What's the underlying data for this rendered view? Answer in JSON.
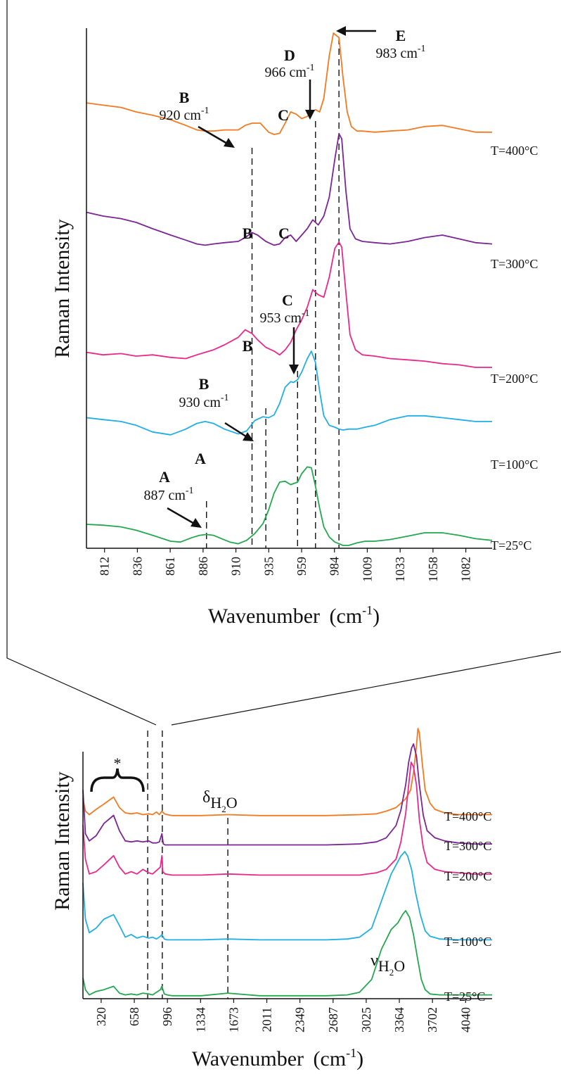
{
  "chart_data": [
    {
      "id": "detail",
      "type": "line",
      "title": "",
      "xlabel": "Wavenumber",
      "xlabel_unit": "(cm",
      "xlabel_unit_sup": "-1",
      "xlabel_unit_close": ")",
      "ylabel": "Raman Intensity",
      "xlim": [
        800,
        1094
      ],
      "x_ticks": [
        "812",
        "836",
        "861",
        "886",
        "910",
        "935",
        "959",
        "984",
        "1009",
        "1033",
        "1058",
        "1082"
      ],
      "grid": false,
      "series": [
        {
          "name": "T=400°C",
          "color": "#f47a20",
          "x": [
            800,
            812,
            825,
            836,
            848,
            861,
            872,
            880,
            886,
            892,
            900,
            910,
            915,
            920,
            926,
            932,
            936,
            940,
            944,
            948,
            952,
            956,
            960,
            963,
            966,
            969,
            972,
            976,
            979,
            983,
            986,
            989,
            992,
            996,
            1000,
            1009,
            1020,
            1033,
            1045,
            1058,
            1070,
            1082,
            1094
          ],
          "y": [
            0.38,
            0.36,
            0.34,
            0.3,
            0.27,
            0.23,
            0.18,
            0.14,
            0.13,
            0.13,
            0.14,
            0.14,
            0.18,
            0.2,
            0.2,
            0.12,
            0.1,
            0.11,
            0.2,
            0.3,
            0.28,
            0.24,
            0.26,
            0.29,
            0.32,
            0.3,
            0.42,
            0.8,
            1.0,
            0.96,
            0.6,
            0.3,
            0.17,
            0.13,
            0.13,
            0.12,
            0.13,
            0.14,
            0.17,
            0.18,
            0.15,
            0.12,
            0.12
          ]
        },
        {
          "name": "T=300°C",
          "color": "#7b2596",
          "x": [
            800,
            812,
            825,
            836,
            848,
            861,
            872,
            880,
            886,
            892,
            900,
            910,
            915,
            920,
            924,
            930,
            936,
            940,
            944,
            948,
            952,
            956,
            960,
            964,
            968,
            972,
            976,
            980,
            983,
            985,
            988,
            991,
            995,
            1000,
            1009,
            1020,
            1033,
            1045,
            1058,
            1070,
            1082,
            1094
          ],
          "y": [
            0.38,
            0.35,
            0.33,
            0.3,
            0.25,
            0.2,
            0.16,
            0.13,
            0.12,
            0.13,
            0.14,
            0.15,
            0.18,
            0.22,
            0.2,
            0.15,
            0.12,
            0.13,
            0.18,
            0.2,
            0.15,
            0.2,
            0.25,
            0.32,
            0.28,
            0.35,
            0.5,
            0.8,
            1.0,
            0.96,
            0.55,
            0.25,
            0.17,
            0.15,
            0.14,
            0.13,
            0.15,
            0.18,
            0.2,
            0.17,
            0.14,
            0.13
          ]
        },
        {
          "name": "T=200°C",
          "color": "#e8288c",
          "x": [
            800,
            812,
            825,
            836,
            848,
            861,
            872,
            880,
            886,
            892,
            900,
            910,
            915,
            920,
            924,
            930,
            936,
            940,
            944,
            948,
            952,
            956,
            960,
            964,
            968,
            972,
            976,
            980,
            983,
            985,
            988,
            991,
            995,
            1000,
            1009,
            1020,
            1033,
            1045,
            1058,
            1070,
            1082,
            1094
          ],
          "y": [
            0.12,
            0.1,
            0.11,
            0.09,
            0.1,
            0.08,
            0.07,
            0.1,
            0.12,
            0.14,
            0.18,
            0.24,
            0.3,
            0.27,
            0.22,
            0.16,
            0.13,
            0.1,
            0.14,
            0.2,
            0.3,
            0.38,
            0.48,
            0.62,
            0.58,
            0.56,
            0.72,
            0.95,
            1.0,
            0.96,
            0.6,
            0.26,
            0.14,
            0.1,
            0.09,
            0.07,
            0.06,
            0.05,
            0.03,
            0.02,
            0.0,
            0.0
          ]
        },
        {
          "name": "T=100°C",
          "color": "#21aee6",
          "x": [
            800,
            812,
            825,
            836,
            848,
            861,
            872,
            880,
            886,
            892,
            900,
            910,
            916,
            922,
            928,
            932,
            936,
            940,
            944,
            948,
            950,
            953,
            956,
            960,
            963,
            966,
            969,
            972,
            976,
            980,
            983,
            986,
            990,
            996,
            1002,
            1009,
            1020,
            1033,
            1045,
            1058,
            1070,
            1082,
            1094
          ],
          "y": [
            0.3,
            0.28,
            0.26,
            0.22,
            0.15,
            0.12,
            0.18,
            0.24,
            0.26,
            0.24,
            0.18,
            0.13,
            0.16,
            0.27,
            0.31,
            0.3,
            0.33,
            0.45,
            0.62,
            0.68,
            0.67,
            0.7,
            0.78,
            0.92,
            1.0,
            0.88,
            0.58,
            0.32,
            0.22,
            0.2,
            0.18,
            0.17,
            0.18,
            0.18,
            0.2,
            0.22,
            0.28,
            0.32,
            0.32,
            0.3,
            0.28,
            0.26,
            0.26
          ]
        },
        {
          "name": "T=25°C",
          "color": "#23a84f",
          "x": [
            800,
            812,
            825,
            836,
            848,
            861,
            868,
            876,
            882,
            887,
            892,
            898,
            904,
            910,
            916,
            922,
            928,
            932,
            936,
            940,
            944,
            948,
            953,
            956,
            960,
            963,
            966,
            969,
            972,
            976,
            980,
            983,
            986,
            990,
            996,
            1002,
            1009,
            1020,
            1033,
            1045,
            1058,
            1070,
            1082,
            1094
          ],
          "y": [
            0.25,
            0.24,
            0.22,
            0.18,
            0.12,
            0.05,
            0.04,
            0.09,
            0.12,
            0.13,
            0.12,
            0.08,
            0.04,
            0.02,
            0.06,
            0.14,
            0.26,
            0.42,
            0.62,
            0.75,
            0.76,
            0.72,
            0.75,
            0.85,
            0.93,
            0.92,
            0.7,
            0.44,
            0.22,
            0.1,
            0.04,
            0.02,
            0.0,
            0.0,
            0.03,
            0.05,
            0.05,
            0.07,
            0.11,
            0.15,
            0.15,
            0.12,
            0.08,
            0.06
          ]
        }
      ],
      "series_labels": [
        "T=400°C",
        "T=300°C",
        "T=200°C",
        "T=100°C",
        "T=25°C"
      ],
      "reference_lines_x": [
        887,
        920,
        930,
        953,
        966,
        983
      ],
      "annotations": [
        {
          "letter": "E",
          "wavenumber": "983 cm",
          "sup": "-1"
        },
        {
          "letter": "D",
          "wavenumber": "966 cm",
          "sup": "-1"
        },
        {
          "letter": "B",
          "wavenumber": "920 cm",
          "sup": "-1"
        },
        {
          "letter": "C"
        },
        {
          "letter": "B"
        },
        {
          "letter": "C"
        },
        {
          "letter": "C",
          "wavenumber": "953 cm",
          "sup": "-1"
        },
        {
          "letter": "B"
        },
        {
          "letter": "B",
          "wavenumber": "930 cm",
          "sup": "-1"
        },
        {
          "letter": "A"
        },
        {
          "letter": "A",
          "wavenumber": "887 cm",
          "sup": "-1"
        }
      ]
    },
    {
      "id": "overview",
      "type": "line",
      "title": "",
      "xlabel": "Wavenumber",
      "xlabel_unit": "(cm",
      "xlabel_unit_sup": "-1",
      "xlabel_unit_close": ")",
      "ylabel": "Raman Intensity",
      "xlim": [
        185,
        4387
      ],
      "x_ticks": [
        "320",
        "658",
        "996",
        "1334",
        "1673",
        "2011",
        "2349",
        "2687",
        "3025",
        "3364",
        "3702",
        "4040"
      ],
      "grid": false,
      "series": [
        {
          "name": "T=400°C",
          "color": "#f47a20",
          "x": [
            185,
            210,
            250,
            320,
            400,
            500,
            560,
            620,
            680,
            740,
            800,
            860,
            900,
            940,
            970,
            996,
            1020,
            1050,
            1100,
            1200,
            1400,
            1673,
            2000,
            2349,
            2687,
            3025,
            3200,
            3300,
            3400,
            3500,
            3550,
            3580,
            3610,
            3625,
            3640,
            3670,
            3700,
            3750,
            3800,
            3900,
            4040,
            4200,
            4387
          ],
          "y": [
            0.2,
            0.06,
            0.02,
            0.08,
            0.14,
            0.22,
            0.1,
            0.04,
            0.03,
            0.04,
            0.02,
            0.03,
            0.02,
            0.05,
            0.02,
            0.06,
            0.03,
            0.02,
            0.01,
            0.01,
            0.01,
            0.02,
            0.01,
            0.01,
            0.01,
            0.02,
            0.03,
            0.06,
            0.1,
            0.2,
            0.3,
            0.5,
            0.8,
            1.0,
            0.95,
            0.6,
            0.3,
            0.15,
            0.08,
            0.04,
            0.02,
            0.02,
            0.02
          ]
        },
        {
          "name": "T=300°C",
          "color": "#7b2596",
          "x": [
            185,
            210,
            250,
            320,
            400,
            500,
            560,
            620,
            680,
            740,
            800,
            860,
            900,
            940,
            970,
            996,
            1010,
            1030,
            1100,
            1200,
            1400,
            1673,
            2000,
            2349,
            2687,
            3025,
            3200,
            3300,
            3400,
            3450,
            3500,
            3530,
            3560,
            3580,
            3610,
            3640,
            3680,
            3720,
            3800,
            3900,
            4040,
            4200,
            4387
          ],
          "y": [
            0.55,
            0.12,
            0.05,
            0.1,
            0.22,
            0.3,
            0.15,
            0.05,
            0.04,
            0.05,
            0.04,
            0.05,
            0.03,
            0.03,
            0.04,
            0.12,
            0.02,
            0.01,
            0.01,
            0.01,
            0.01,
            0.01,
            0.01,
            0.01,
            0.01,
            0.02,
            0.04,
            0.08,
            0.2,
            0.35,
            0.6,
            0.82,
            0.96,
            1.0,
            0.88,
            0.6,
            0.3,
            0.15,
            0.08,
            0.05,
            0.03,
            0.02,
            0.02
          ]
        },
        {
          "name": "T=200°C",
          "color": "#e8288c",
          "x": [
            185,
            210,
            250,
            320,
            400,
            500,
            560,
            620,
            680,
            740,
            800,
            860,
            900,
            940,
            980,
            996,
            1005,
            1030,
            1100,
            1200,
            1400,
            1673,
            2000,
            2349,
            2687,
            3025,
            3200,
            3300,
            3400,
            3450,
            3500,
            3530,
            3555,
            3580,
            3610,
            3640,
            3680,
            3720,
            3800,
            3900,
            4040,
            4200,
            4387
          ],
          "y": [
            0.45,
            0.15,
            0.02,
            0.04,
            0.1,
            0.18,
            0.08,
            0.02,
            0.04,
            0.02,
            0.06,
            0.03,
            0.02,
            0.05,
            0.08,
            0.18,
            0.04,
            0.02,
            0.01,
            0.01,
            0.01,
            0.02,
            0.01,
            0.01,
            0.01,
            0.01,
            0.03,
            0.06,
            0.15,
            0.3,
            0.55,
            0.8,
            1.0,
            0.96,
            0.8,
            0.5,
            0.25,
            0.12,
            0.06,
            0.04,
            0.03,
            0.02,
            0.02
          ]
        },
        {
          "name": "T=100°C",
          "color": "#21aee6",
          "x": [
            185,
            210,
            250,
            320,
            400,
            500,
            560,
            620,
            680,
            740,
            800,
            860,
            900,
            940,
            980,
            996,
            1020,
            1050,
            1100,
            1200,
            1400,
            1673,
            2000,
            2349,
            2687,
            2900,
            3025,
            3150,
            3250,
            3350,
            3400,
            3450,
            3490,
            3520,
            3560,
            3600,
            3650,
            3700,
            3750,
            3850,
            4040,
            4200,
            4387
          ],
          "y": [
            0.65,
            0.25,
            0.1,
            0.15,
            0.25,
            0.3,
            0.18,
            0.05,
            0.08,
            0.04,
            0.06,
            0.04,
            0.05,
            0.03,
            0.06,
            0.08,
            0.03,
            0.02,
            0.02,
            0.02,
            0.02,
            0.03,
            0.02,
            0.02,
            0.02,
            0.03,
            0.05,
            0.15,
            0.45,
            0.75,
            0.85,
            0.95,
            1.0,
            0.95,
            0.8,
            0.55,
            0.3,
            0.12,
            0.06,
            0.03,
            0.02,
            0.02,
            0.02
          ]
        },
        {
          "name": "T=25°C",
          "color": "#23a84f",
          "x": [
            185,
            210,
            250,
            320,
            400,
            500,
            560,
            620,
            680,
            740,
            800,
            860,
            900,
            940,
            980,
            996,
            1020,
            1050,
            1100,
            1200,
            1400,
            1673,
            2000,
            2349,
            2687,
            2900,
            3025,
            3150,
            3250,
            3350,
            3420,
            3470,
            3500,
            3540,
            3580,
            3620,
            3660,
            3700,
            3750,
            3850,
            4040,
            4200,
            4387
          ],
          "y": [
            0.22,
            0.08,
            0.02,
            0.06,
            0.08,
            0.12,
            0.04,
            0.02,
            0.03,
            0.02,
            0.04,
            0.03,
            0.02,
            0.05,
            0.08,
            0.12,
            0.03,
            0.02,
            0.01,
            0.01,
            0.01,
            0.04,
            0.01,
            0.01,
            0.01,
            0.02,
            0.05,
            0.2,
            0.55,
            0.78,
            0.86,
            0.96,
            1.0,
            0.92,
            0.72,
            0.45,
            0.2,
            0.08,
            0.03,
            0.02,
            0.02,
            0.02,
            0.02
          ]
        }
      ],
      "series_labels": [
        "T=400°C",
        "T=300°C",
        "T=200°C",
        "T=100°C",
        "T=25°C"
      ],
      "reference_lines_x": [
        850,
        1000,
        1673
      ],
      "annotations": [
        {
          "symbol": "*"
        },
        {
          "symbol": "δ",
          "subscript": "H",
          "subscript2": "2",
          "subscript3": "O"
        },
        {
          "symbol": "ν",
          "subscript": "H",
          "subscript2": "2",
          "subscript3": "O"
        }
      ]
    }
  ]
}
